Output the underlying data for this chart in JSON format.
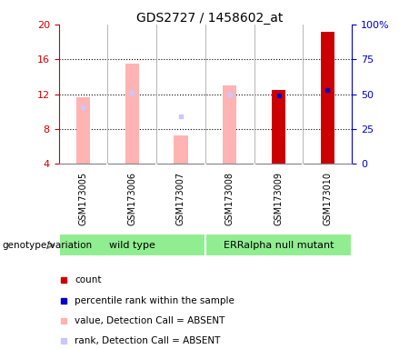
{
  "title": "GDS2727 / 1458602_at",
  "samples": [
    "GSM173005",
    "GSM173006",
    "GSM173007",
    "GSM173008",
    "GSM173009",
    "GSM173010"
  ],
  "ylim_left": [
    4,
    20
  ],
  "ylim_right": [
    0,
    100
  ],
  "yticks_left": [
    4,
    8,
    12,
    16,
    20
  ],
  "yticks_right": [
    0,
    25,
    50,
    75,
    100
  ],
  "left_color": "#cc0000",
  "right_color": "#0000cc",
  "absent_bar_color": "#ffb3b3",
  "absent_rank_color": "#c8c8ff",
  "present_bar_color": "#cc0000",
  "present_rank_color": "#0000cc",
  "value_bars_absent": [
    11.7,
    15.5,
    7.3,
    13.0,
    null,
    null
  ],
  "rank_dots_absent": [
    10.5,
    12.2,
    9.5,
    12.0,
    null,
    null
  ],
  "value_bars_present": [
    null,
    null,
    null,
    null,
    12.5,
    19.2
  ],
  "rank_dots_present": [
    null,
    null,
    null,
    null,
    11.9,
    12.5
  ],
  "bar_bottom": 4,
  "plot_bg_color": "#ffffff",
  "sample_box_color": "#d3d3d3",
  "group_box_wt_color": "#90ee90",
  "group_box_err_color": "#90ee90",
  "wt_samples": [
    0,
    1,
    2
  ],
  "err_samples": [
    3,
    4,
    5
  ],
  "legend_items": [
    {
      "label": "count",
      "color": "#cc0000"
    },
    {
      "label": "percentile rank within the sample",
      "color": "#0000cc"
    },
    {
      "label": "value, Detection Call = ABSENT",
      "color": "#ffb3b3"
    },
    {
      "label": "rank, Detection Call = ABSENT",
      "color": "#c8c8ff"
    }
  ]
}
